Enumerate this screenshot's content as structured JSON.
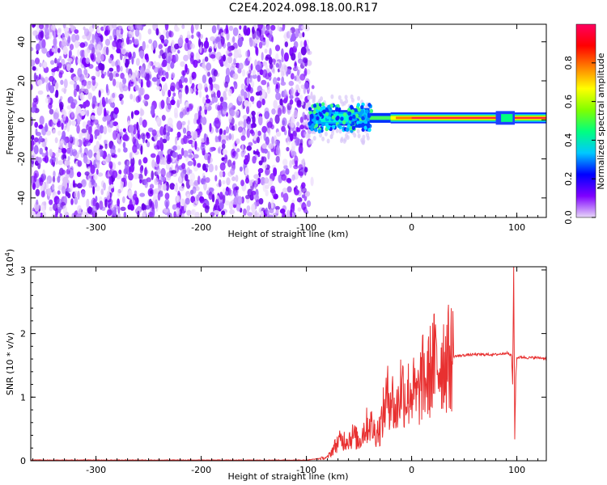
{
  "title": "C2E4.2024.098.18.00.R17",
  "chart_data": [
    {
      "type": "heatmap",
      "xlabel": "Height of straight line (km)",
      "ylabel": "Frequency (Hz)",
      "xlim": [
        -362,
        128
      ],
      "ylim": [
        -50,
        49
      ],
      "xticks": [
        -300,
        -200,
        -100,
        0,
        100
      ],
      "xtick_labels": [
        "-300",
        "-200",
        "-100",
        "0",
        "100"
      ],
      "yticks": [
        -40,
        -20,
        0,
        20,
        40
      ],
      "ytick_labels": [
        "-40",
        "-20",
        "0",
        "20",
        "40"
      ],
      "noise_region_x": [
        -362,
        -97
      ],
      "signal_line_y": 1,
      "colorbar": {
        "label": "Normalized spectral amplitude",
        "range": [
          0,
          1
        ],
        "ticks": [
          0.0,
          0.2,
          0.4,
          0.6,
          0.8
        ],
        "tick_labels": [
          "0.0",
          "0.2",
          "0.4",
          "0.6",
          "0.8"
        ],
        "colormap": [
          "#e8d8f8",
          "#7f00ff",
          "#0000ff",
          "#00c8ff",
          "#00ff80",
          "#80ff00",
          "#ffff00",
          "#ff8000",
          "#ff0000",
          "#ff0060"
        ]
      },
      "grid": false
    },
    {
      "type": "line",
      "xlabel": "Height of straight line (km)",
      "ylabel": "SNR (10 * v/v)",
      "y_multiplier_label": "(x10",
      "y_multiplier_exp": "4",
      "xlim": [
        -362,
        128
      ],
      "ylim": [
        0,
        3.05
      ],
      "xticks": [
        -300,
        -200,
        -100,
        0,
        100
      ],
      "xtick_labels": [
        "-300",
        "-200",
        "-100",
        "0",
        "100"
      ],
      "yticks": [
        0,
        1,
        2,
        3
      ],
      "ytick_labels": [
        "0",
        "1",
        "2",
        "3"
      ],
      "color": "#e83030",
      "series": [
        {
          "x": [
            -362,
            -300,
            -200,
            -100,
            -80,
            -70,
            -60,
            -55,
            -50,
            -45,
            -40,
            -35,
            -30,
            -25,
            -20,
            -15,
            -10,
            -5,
            0,
            5,
            10,
            15,
            20,
            25,
            30,
            35,
            40,
            50,
            60,
            70,
            80,
            85,
            90,
            95,
            96,
            97,
            98,
            99,
            100,
            105,
            110,
            115,
            120,
            128
          ],
          "values": [
            0.01,
            0.01,
            0.01,
            0.01,
            0.05,
            0.3,
            0.35,
            0.4,
            0.3,
            0.5,
            0.6,
            0.45,
            0.5,
            0.9,
            1.1,
            0.7,
            1.2,
            1.0,
            1.15,
            0.95,
            1.3,
            1.25,
            1.55,
            1.5,
            1.62,
            1.6,
            1.64,
            1.66,
            1.67,
            1.67,
            1.67,
            1.68,
            1.7,
            1.65,
            1.2,
            3.05,
            0.35,
            1.3,
            1.62,
            1.63,
            1.62,
            1.62,
            1.62,
            1.61
          ]
        }
      ],
      "grid": false
    }
  ]
}
